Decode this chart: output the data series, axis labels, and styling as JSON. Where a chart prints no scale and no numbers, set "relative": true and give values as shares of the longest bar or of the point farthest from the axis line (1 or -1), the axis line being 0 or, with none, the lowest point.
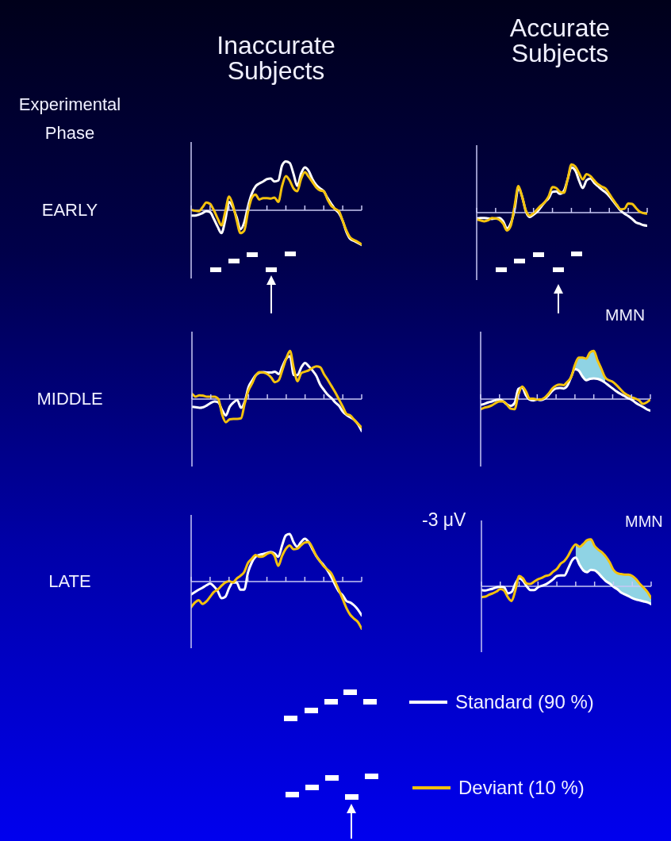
{
  "chart_data": [
    {
      "type": "line",
      "title": "Inaccurate Subjects",
      "ylabel": "EARLY",
      "annotations": [
        "Experimental Phase"
      ],
      "relative": true,
      "ref_lines": [
        {
          "axis": "y",
          "value": 0
        }
      ],
      "categories": [
        null,
        null,
        null,
        null,
        null,
        null,
        null,
        null,
        null,
        null,
        null,
        null,
        null,
        null,
        null,
        null,
        null,
        null,
        null,
        null,
        null,
        null,
        null,
        null,
        null,
        null,
        null,
        null,
        null,
        null,
        null,
        null,
        null,
        null,
        null,
        null,
        null,
        null,
        null,
        null,
        null,
        null,
        null,
        null,
        null,
        null
      ],
      "series": [
        {
          "color": "#ffffff",
          "values": [
            -0.11,
            -0.11,
            -0.09,
            -0.06,
            -0.02,
            -0.04,
            -0.18,
            -0.34,
            -0.47,
            -0.2,
            0.17,
            0.06,
            -0.14,
            -0.39,
            -0.25,
            0.08,
            0.34,
            0.49,
            0.55,
            0.59,
            0.64,
            0.65,
            0.59,
            0.61,
            0.92,
            1,
            0.97,
            0.75,
            0.5,
            0.75,
            0.88,
            0.81,
            0.64,
            0.52,
            0.45,
            0.39,
            0.25,
            0.13,
            0.02,
            -0.06,
            -0.22,
            -0.45,
            -0.59,
            -0.63,
            -0.67,
            -0.71
          ]
        },
        {
          "color": "#f4c20d",
          "values": [
            0.01,
            -0.01,
            -0.02,
            0.06,
            0.16,
            0.13,
            0,
            -0.17,
            -0.31,
            -0.03,
            0.28,
            0.11,
            -0.2,
            -0.47,
            -0.42,
            -0.03,
            0.25,
            0.32,
            0.22,
            0.25,
            0.25,
            0.24,
            0.26,
            0.17,
            0.5,
            0.7,
            0.61,
            0.45,
            0.39,
            0.64,
            0.78,
            0.69,
            0.58,
            0.47,
            0.41,
            0.39,
            0.22,
            0.09,
            0.03,
            -0.02,
            -0.22,
            -0.42,
            -0.56,
            -0.61,
            -0.65,
            -0.7
          ]
        }
      ]
    },
    {
      "type": "line",
      "title": "Accurate Subjects",
      "relative": true,
      "ref_lines": [
        {
          "axis": "y",
          "value": 0
        }
      ],
      "categories": [
        null,
        null,
        null,
        null,
        null,
        null,
        null,
        null,
        null,
        null,
        null,
        null,
        null,
        null,
        null,
        null,
        null,
        null,
        null,
        null,
        null,
        null,
        null,
        null,
        null,
        null,
        null,
        null,
        null,
        null,
        null,
        null,
        null,
        null,
        null,
        null,
        null,
        null,
        null,
        null,
        null,
        null,
        null,
        null,
        null,
        null
      ],
      "series": [
        {
          "color": "#ffffff",
          "values": [
            -0.12,
            -0.11,
            -0.11,
            -0.12,
            -0.13,
            -0.12,
            -0.11,
            -0.18,
            -0.33,
            -0.22,
            0.06,
            0.51,
            0.33,
            0.02,
            -0.09,
            -0.04,
            0.02,
            0.12,
            0.22,
            0.3,
            0.43,
            0.44,
            0.39,
            0.45,
            0.69,
            0.94,
            0.88,
            0.67,
            0.51,
            0.67,
            0.71,
            0.62,
            0.55,
            0.48,
            0.42,
            0.34,
            0.24,
            0.14,
            0.04,
            -0.02,
            -0.07,
            -0.13,
            -0.2,
            -0.23,
            -0.26,
            -0.27
          ]
        },
        {
          "color": "#f4c20d",
          "values": [
            -0.14,
            -0.16,
            -0.18,
            -0.16,
            -0.11,
            -0.12,
            -0.15,
            -0.23,
            -0.37,
            -0.27,
            0.14,
            0.55,
            0.33,
            0.04,
            -0.06,
            -0.01,
            0.07,
            0.15,
            0.22,
            0.34,
            0.53,
            0.51,
            0.43,
            0.41,
            0.69,
            1,
            0.96,
            0.82,
            0.69,
            0.8,
            0.76,
            0.67,
            0.59,
            0.54,
            0.5,
            0.39,
            0.27,
            0.16,
            0.07,
            0.08,
            0.19,
            0.18,
            0.1,
            0.02,
            -0.01,
            -0.02
          ]
        }
      ]
    },
    {
      "type": "line",
      "ylabel": "MIDDLE",
      "relative": true,
      "ref_lines": [
        {
          "axis": "y",
          "value": 0
        }
      ],
      "categories": [
        null,
        null,
        null,
        null,
        null,
        null,
        null,
        null,
        null,
        null,
        null,
        null,
        null,
        null,
        null,
        null,
        null,
        null,
        null,
        null,
        null,
        null,
        null,
        null,
        null,
        null,
        null,
        null,
        null,
        null,
        null,
        null,
        null,
        null,
        null,
        null,
        null,
        null,
        null,
        null,
        null,
        null,
        null,
        null,
        null,
        null
      ],
      "series": [
        {
          "color": "#ffffff",
          "values": [
            -0.16,
            -0.17,
            -0.18,
            -0.17,
            -0.13,
            -0.08,
            -0.05,
            -0.07,
            -0.23,
            -0.34,
            -0.16,
            -0.07,
            -0.02,
            -0.18,
            -0.05,
            0.25,
            0.39,
            0.5,
            0.55,
            0.56,
            0.55,
            0.55,
            0.57,
            0.52,
            0.68,
            0.84,
            0.89,
            0.5,
            0.5,
            0.66,
            0.75,
            0.68,
            0.59,
            0.48,
            0.3,
            0.19,
            0.09,
            0.02,
            -0.07,
            -0.14,
            -0.26,
            -0.33,
            -0.38,
            -0.43,
            -0.52,
            -0.66
          ]
        },
        {
          "color": "#f4c20d",
          "values": [
            0.11,
            0.05,
            0.08,
            0.07,
            0.05,
            0.05,
            0.05,
            0,
            -0.32,
            -0.48,
            -0.42,
            -0.41,
            -0.41,
            -0.4,
            -0.09,
            0.18,
            0.33,
            0.5,
            0.56,
            0.55,
            0.52,
            0.45,
            0.35,
            0.39,
            0.61,
            0.84,
            1,
            0.64,
            0.37,
            0.54,
            0.57,
            0.6,
            0.65,
            0.68,
            0.66,
            0.52,
            0.4,
            0.27,
            0.14,
            -0.01,
            -0.16,
            -0.31,
            -0.34,
            -0.43,
            -0.51,
            -0.59
          ]
        }
      ]
    },
    {
      "type": "line",
      "annotations": [
        "MMN"
      ],
      "relative": true,
      "ref_lines": [
        {
          "axis": "y",
          "value": 0
        }
      ],
      "categories": [
        null,
        null,
        null,
        null,
        null,
        null,
        null,
        null,
        null,
        null,
        null,
        null,
        null,
        null,
        null,
        null,
        null,
        null,
        null,
        null,
        null,
        null,
        null,
        null,
        null,
        null,
        null,
        null,
        null,
        null,
        null,
        null,
        null,
        null,
        null,
        null,
        null,
        null,
        null,
        null,
        null,
        null,
        null,
        null,
        null,
        null
      ],
      "series": [
        {
          "color": "#ffffff",
          "values": [
            -0.12,
            -0.1,
            -0.07,
            -0.05,
            -0.02,
            -0.01,
            -0.05,
            -0.11,
            -0.14,
            -0.08,
            0.21,
            0.24,
            0.08,
            -0.01,
            -0.03,
            -0.01,
            -0.02,
            0.01,
            0.08,
            0.17,
            0.22,
            0.23,
            0.22,
            0.28,
            0.46,
            0.62,
            0.59,
            0.47,
            0.39,
            0.42,
            0.43,
            0.42,
            0.39,
            0.34,
            0.28,
            0.22,
            0.16,
            0.11,
            0.07,
            0.02,
            -0.01,
            -0.07,
            -0.12,
            -0.16,
            -0.21,
            -0.24
          ]
        },
        {
          "color": "#f4c20d",
          "values": [
            -0.21,
            -0.18,
            -0.16,
            -0.13,
            -0.08,
            -0.05,
            -0.05,
            -0.12,
            -0.2,
            -0.21,
            0.09,
            0.26,
            0.16,
            0.01,
            0.01,
            -0.01,
            -0.01,
            0.03,
            0.11,
            0.22,
            0.28,
            0.3,
            0.29,
            0.36,
            0.46,
            0.71,
            0.86,
            0.86,
            0.84,
            0.97,
            1,
            0.8,
            0.63,
            0.45,
            0.39,
            0.36,
            0.29,
            0.21,
            0.13,
            0.08,
            0.04,
            0.01,
            -0.03,
            -0.1,
            -0.07,
            -0.01
          ],
          "lower": [
            null,
            null,
            null,
            null,
            null,
            null,
            null,
            null,
            null,
            null,
            null,
            null,
            null,
            null,
            null,
            null,
            null,
            null,
            null,
            null,
            null,
            null,
            null,
            null,
            null,
            0.62,
            0.59,
            0.47,
            0.39,
            0.42,
            0.43,
            0.42,
            0.39,
            0.34,
            null,
            null,
            null,
            null,
            null,
            null,
            null,
            null,
            null,
            null,
            null,
            null
          ],
          "upper": [
            null,
            null,
            null,
            null,
            null,
            null,
            null,
            null,
            null,
            null,
            null,
            null,
            null,
            null,
            null,
            null,
            null,
            null,
            null,
            null,
            null,
            null,
            null,
            null,
            null,
            0.71,
            0.86,
            0.86,
            0.84,
            0.97,
            1,
            0.8,
            0.63,
            0.45,
            null,
            null,
            null,
            null,
            null,
            null,
            null,
            null,
            null,
            null,
            null,
            null
          ]
        }
      ]
    },
    {
      "type": "line",
      "ylabel": "LATE",
      "relative": true,
      "ref_lines": [
        {
          "axis": "y",
          "value": 0
        }
      ],
      "categories": [
        null,
        null,
        null,
        null,
        null,
        null,
        null,
        null,
        null,
        null,
        null,
        null,
        null,
        null,
        null,
        null,
        null,
        null,
        null,
        null,
        null,
        null,
        null,
        null,
        null,
        null,
        null,
        null,
        null,
        null,
        null,
        null,
        null,
        null,
        null,
        null,
        null,
        null,
        null,
        null,
        null,
        null,
        null,
        null,
        null,
        null
      ],
      "series": [
        {
          "color": "#ffffff",
          "values": [
            -0.27,
            -0.22,
            -0.17,
            -0.13,
            -0.08,
            -0.04,
            -0.1,
            -0.2,
            -0.35,
            -0.32,
            -0.14,
            -0.02,
            -0.02,
            -0.17,
            -0.17,
            0.19,
            0.4,
            0.52,
            0.56,
            0.58,
            0.6,
            0.62,
            0.59,
            0.52,
            0.76,
            0.97,
            1,
            0.83,
            0.73,
            0.83,
            0.9,
            0.83,
            0.68,
            0.54,
            0.43,
            0.34,
            0.23,
            0.09,
            -0.07,
            -0.21,
            -0.29,
            -0.41,
            -0.44,
            -0.5,
            -0.59,
            -0.71
          ]
        },
        {
          "color": "#f4c20d",
          "values": [
            -0.54,
            -0.44,
            -0.39,
            -0.47,
            -0.42,
            -0.32,
            -0.22,
            -0.17,
            -0.09,
            -0.02,
            0.01,
            -0.02,
            0.06,
            0.12,
            0.2,
            0.39,
            0.48,
            0.56,
            0.52,
            0.53,
            0.58,
            0.61,
            0.54,
            0.33,
            0.54,
            0.69,
            0.76,
            0.68,
            0.69,
            0.76,
            0.82,
            0.83,
            0.71,
            0.54,
            0.43,
            0.32,
            0.25,
            0.17,
            0,
            -0.18,
            -0.37,
            -0.56,
            -0.7,
            -0.78,
            -0.85,
            -0.99
          ]
        }
      ]
    },
    {
      "type": "line",
      "annotations": [
        "-3 μV",
        "MMN"
      ],
      "relative": true,
      "legend": "bottom",
      "ref_lines": [
        {
          "axis": "y",
          "value": 0
        }
      ],
      "categories": [
        null,
        null,
        null,
        null,
        null,
        null,
        null,
        null,
        null,
        null,
        null,
        null,
        null,
        null,
        null,
        null,
        null,
        null,
        null,
        null,
        null,
        null,
        null,
        null,
        null,
        null,
        null,
        null,
        null,
        null,
        null,
        null,
        null,
        null,
        null,
        null,
        null,
        null,
        null,
        null,
        null,
        null,
        null,
        null,
        null,
        null
      ],
      "series": [
        {
          "name": "Standard (90 %)",
          "color": "#ffffff",
          "values": [
            -0.08,
            -0.09,
            -0.07,
            -0.05,
            -0.02,
            -0.01,
            -0.02,
            -0.15,
            -0.12,
            0.06,
            0.17,
            0.12,
            0,
            -0.08,
            -0.08,
            -0.02,
            0.01,
            0.04,
            0.09,
            0.15,
            0.22,
            0.23,
            0.23,
            0.38,
            0.55,
            0.61,
            0.46,
            0.34,
            0.3,
            0.35,
            0.34,
            0.28,
            0.19,
            0.11,
            0.06,
            -0.01,
            -0.06,
            -0.13,
            -0.17,
            -0.21,
            -0.25,
            -0.28,
            -0.3,
            -0.32,
            -0.34,
            -0.38
          ]
        },
        {
          "name": "Deviant (10 %)",
          "color": "#f4c20d",
          "values": [
            -0.23,
            -0.22,
            -0.18,
            -0.15,
            -0.11,
            -0.06,
            -0.09,
            -0.23,
            -0.31,
            -0.08,
            0.22,
            0.17,
            0.06,
            0.05,
            0.1,
            0.15,
            0.18,
            0.22,
            0.24,
            0.31,
            0.37,
            0.48,
            0.54,
            0.65,
            0.8,
            0.89,
            0.84,
            0.9,
            0.98,
            1,
            0.86,
            0.78,
            0.72,
            0.63,
            0.51,
            0.35,
            0.28,
            0.26,
            0.25,
            0.25,
            0.22,
            0.15,
            0.05,
            -0.03,
            -0.12,
            -0.25
          ],
          "lower": [
            null,
            null,
            null,
            null,
            null,
            null,
            null,
            null,
            null,
            null,
            null,
            null,
            null,
            null,
            null,
            null,
            null,
            null,
            null,
            null,
            null,
            null,
            null,
            null,
            null,
            0.61,
            0.46,
            0.34,
            0.3,
            0.35,
            0.34,
            0.28,
            0.19,
            0.11,
            0.06,
            -0.01,
            -0.06,
            -0.13,
            -0.17,
            -0.21,
            -0.25,
            -0.28,
            -0.3,
            -0.32,
            -0.34,
            -0.38
          ],
          "upper": [
            null,
            null,
            null,
            null,
            null,
            null,
            null,
            null,
            null,
            null,
            null,
            null,
            null,
            null,
            null,
            null,
            null,
            null,
            null,
            null,
            null,
            null,
            null,
            null,
            null,
            0.89,
            0.84,
            0.9,
            0.98,
            1,
            0.86,
            0.78,
            0.72,
            0.63,
            0.51,
            0.35,
            0.28,
            0.26,
            0.25,
            0.25,
            0.22,
            0.15,
            0.05,
            -0.03,
            -0.12,
            -0.25
          ]
        }
      ]
    }
  ]
}
